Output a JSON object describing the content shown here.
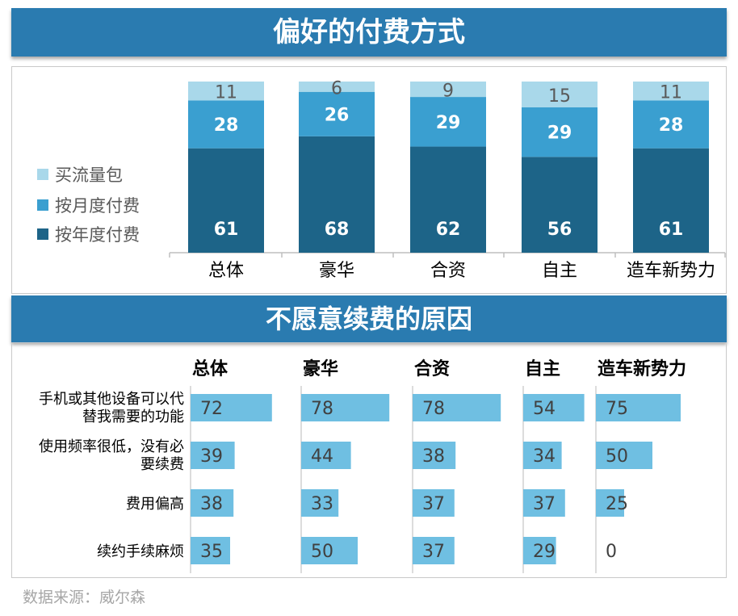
{
  "chart1": {
    "title": "偏好的付费方式",
    "categories": [
      "总体",
      "豪华",
      "合资",
      "自主",
      "造车新势力"
    ],
    "legend": [
      {
        "name": "买流量包",
        "color": "#a9d8ea"
      },
      {
        "name": "按月度付费",
        "color": "#3a9fd0"
      },
      {
        "name": "按年度付费",
        "color": "#1d6488"
      }
    ]
  },
  "chart2": {
    "title": "不愿意续费的原因",
    "columns": [
      "总体",
      "豪华",
      "合资",
      "自主",
      "造车新势力"
    ],
    "rows": [
      {
        "label": [
          "手机或其他设备可以代",
          "替我需要的功能"
        ]
      },
      {
        "label": [
          "使用频率很低，没有必",
          "要续费"
        ]
      },
      {
        "label": [
          "费用偏高"
        ]
      },
      {
        "label": [
          "续约手续麻烦"
        ]
      }
    ],
    "bar_color": "#6fbfe2"
  },
  "source": "数据来源：威尔森",
  "chart_data": [
    {
      "type": "bar",
      "stacked": true,
      "title": "偏好的付费方式",
      "categories": [
        "总体",
        "豪华",
        "合资",
        "自主",
        "造车新势力"
      ],
      "series": [
        {
          "name": "按年度付费",
          "values": [
            61,
            68,
            62,
            56,
            61
          ]
        },
        {
          "name": "按月度付费",
          "values": [
            28,
            26,
            29,
            29,
            28
          ]
        },
        {
          "name": "买流量包",
          "values": [
            11,
            6,
            9,
            15,
            11
          ]
        }
      ],
      "ylim": [
        0,
        100
      ],
      "legend": "left"
    },
    {
      "type": "bar",
      "orientation": "horizontal",
      "title": "不愿意续费的原因",
      "categories": [
        "手机或其他设备可以代替我需要的功能",
        "使用频率很低，没有必要续费",
        "费用偏高",
        "续约手续麻烦"
      ],
      "series": [
        {
          "name": "总体",
          "values": [
            72,
            39,
            38,
            35
          ]
        },
        {
          "name": "豪华",
          "values": [
            78,
            44,
            33,
            50
          ]
        },
        {
          "name": "合资",
          "values": [
            78,
            38,
            37,
            37
          ]
        },
        {
          "name": "自主",
          "values": [
            54,
            34,
            37,
            29
          ]
        },
        {
          "name": "造车新势力",
          "values": [
            75,
            50,
            25,
            0
          ]
        }
      ]
    }
  ]
}
